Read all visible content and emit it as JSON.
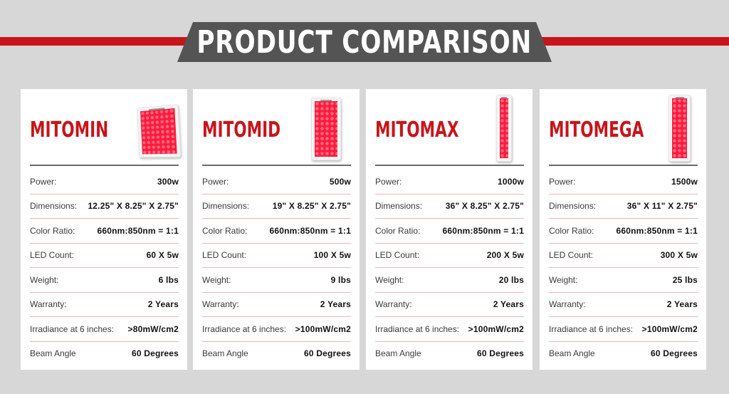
{
  "title": "PRODUCT COMPARISON",
  "colors": {
    "accent": "#c8141a",
    "banner": "#545454",
    "background": "#d7d7d7"
  },
  "labels": [
    "Power:",
    "Dimensions:",
    "Color Ratio:",
    "LED Count:",
    "Weight:",
    "Warranty:",
    "Irradiance at 6 inches:",
    "Beam Angle"
  ],
  "products": [
    {
      "name": "MITOMIN",
      "values": [
        "300w",
        "12.25\" X 8.25\" X 2.75\"",
        "660nm:850nm = 1:1",
        "60 X 5w",
        "6 lbs",
        "2 Years",
        ">80mW/cm2",
        "60 Degrees"
      ]
    },
    {
      "name": "MITOMID",
      "values": [
        "500w",
        "19\" X 8.25\" X 2.75\"",
        "660nm:850nm = 1:1",
        "100 X 5w",
        "9 lbs",
        "2 Years",
        ">100mW/cm2",
        "60 Degrees"
      ]
    },
    {
      "name": "MITOMAX",
      "values": [
        "1000w",
        "36\" X 8.25\" X 2.75\"",
        "660nm:850nm = 1:1",
        "200 X 5w",
        "20 lbs",
        "2 Years",
        ">100mW/cm2",
        "60 Degrees"
      ]
    },
    {
      "name": "MITOMEGA",
      "values": [
        "1500w",
        "36\" X 11\" X 2.75\"",
        "660nm:850nm = 1:1",
        "300 X 5w",
        "25 lbs",
        "2 Years",
        ">100mW/cm2",
        "60 Degrees"
      ]
    }
  ]
}
